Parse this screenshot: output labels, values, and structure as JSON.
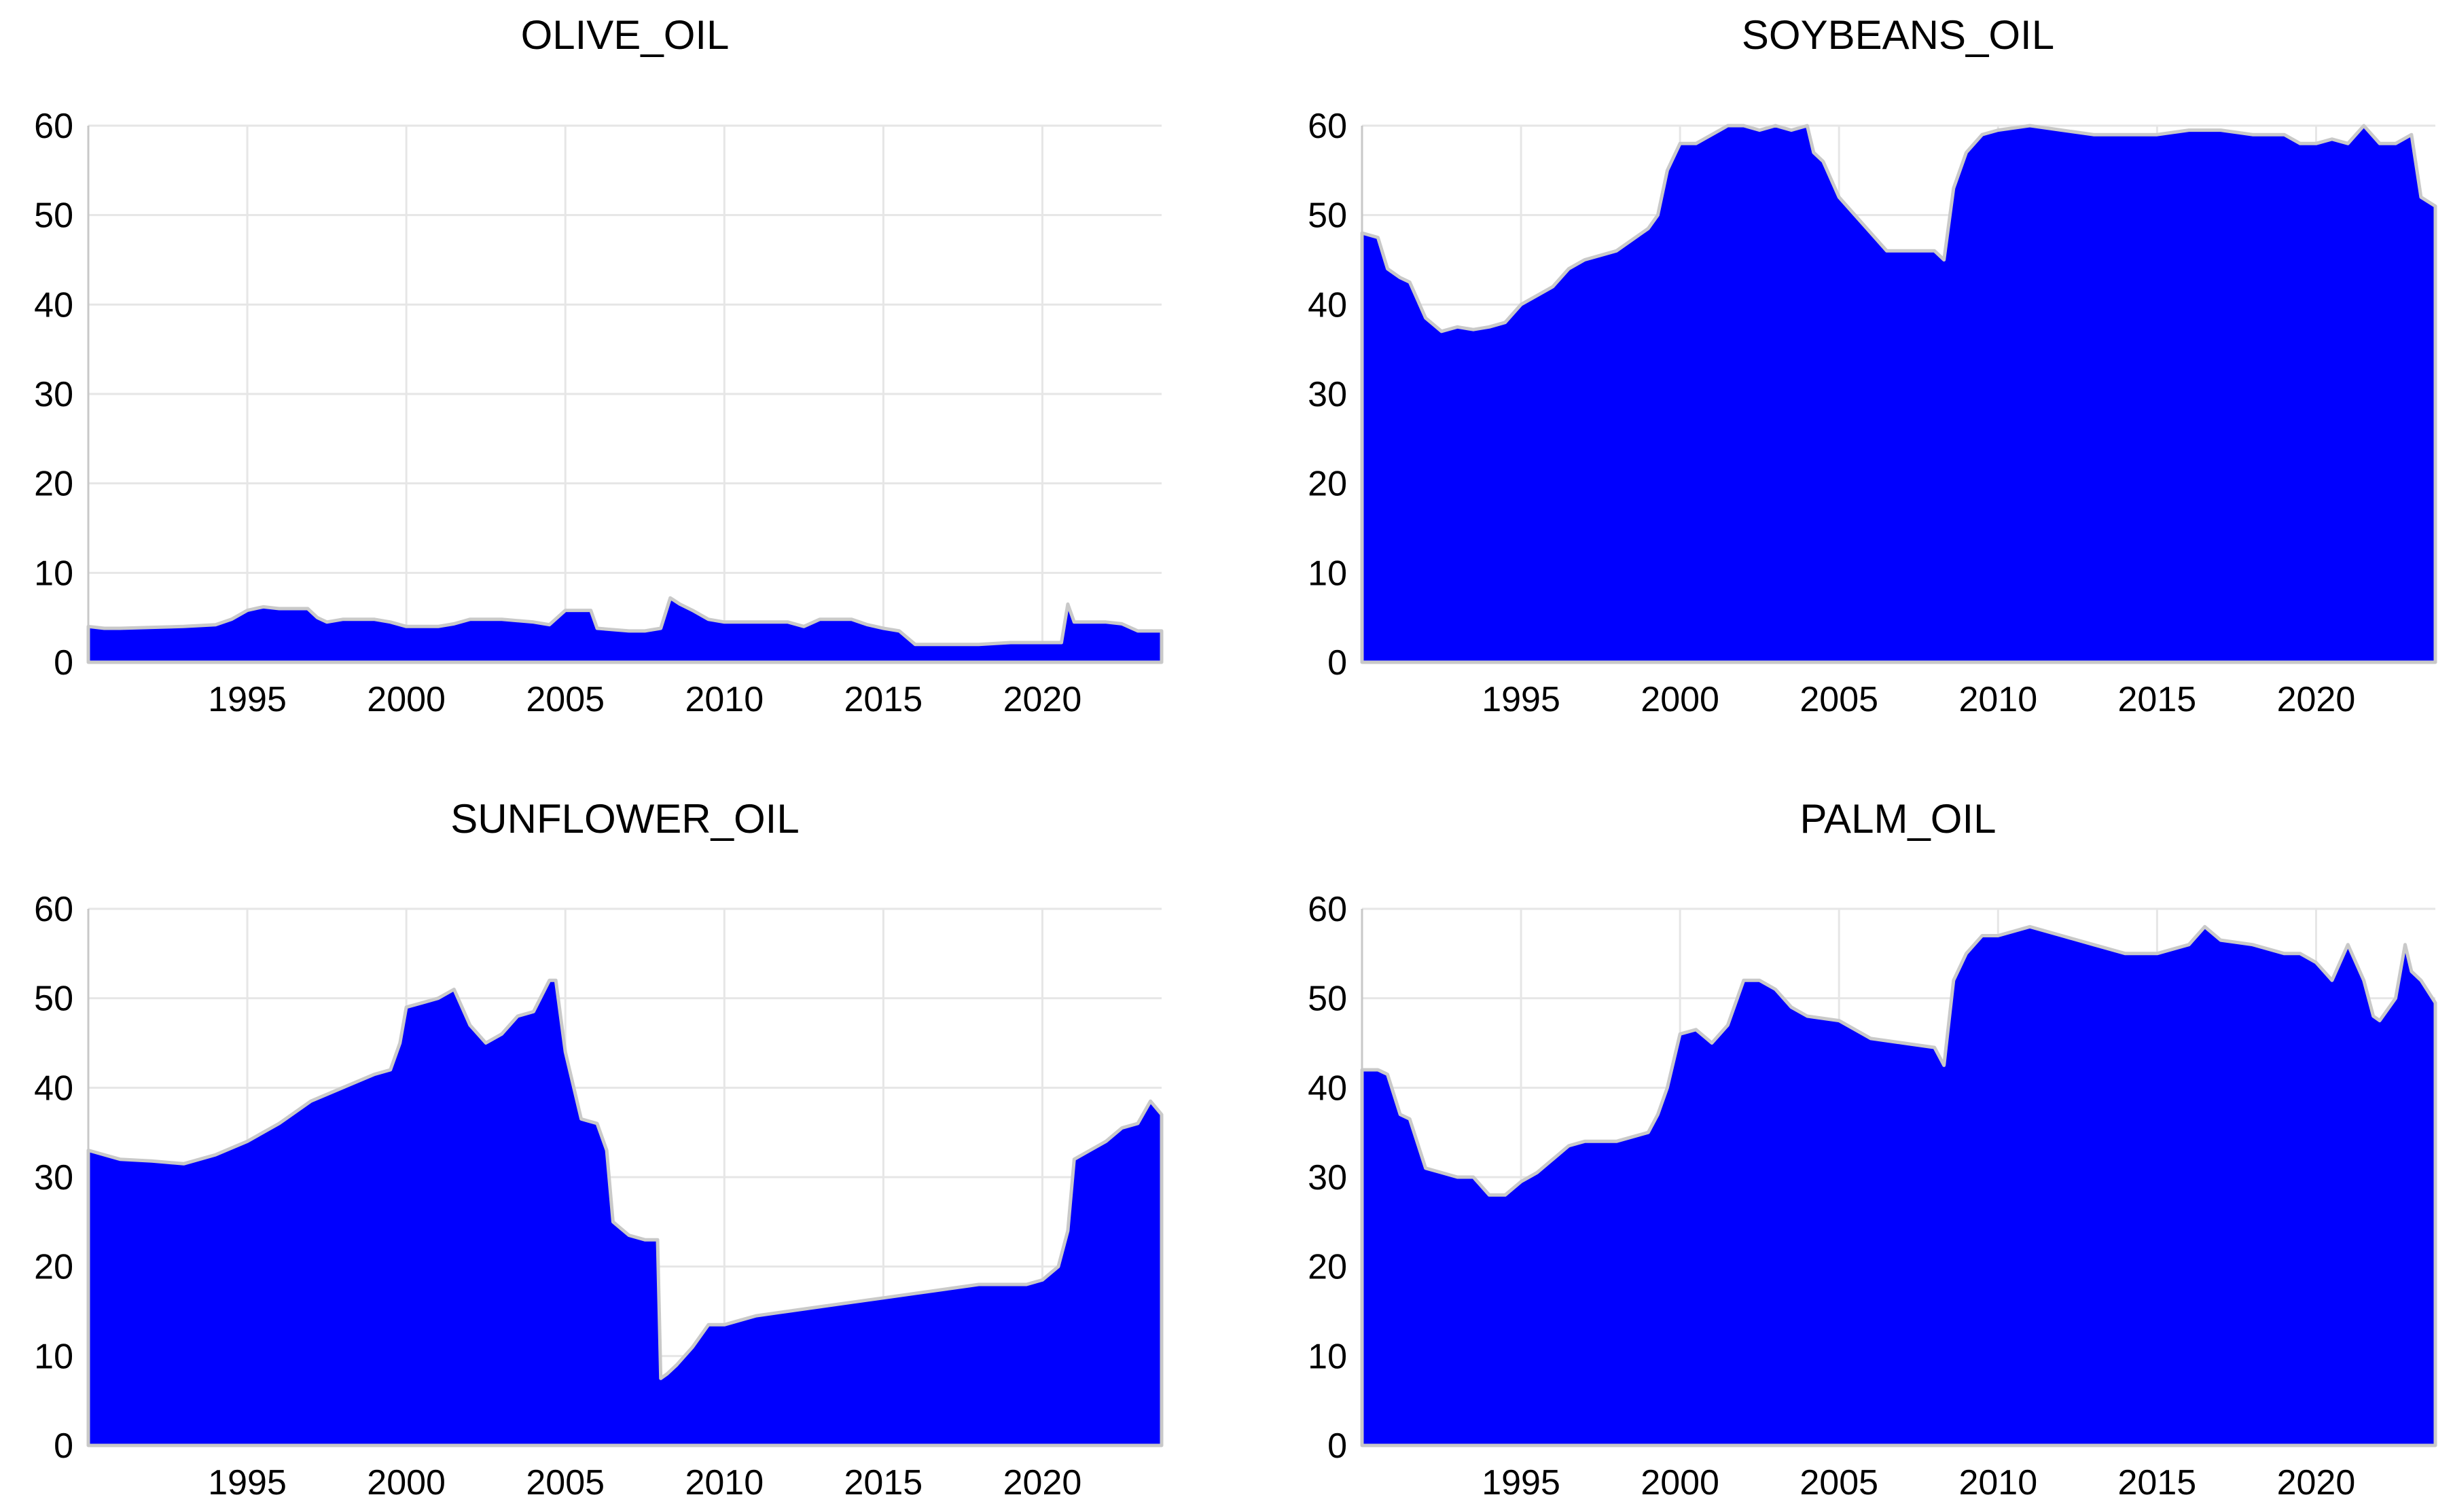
{
  "chart_data": [
    {
      "type": "area",
      "title": "OLIVE_OIL",
      "xlabel": "",
      "ylabel": "",
      "xlim": [
        1990.0,
        2023.75
      ],
      "ylim": [
        0,
        60
      ],
      "x_ticks": [
        1995,
        2000,
        2005,
        2010,
        2015,
        2020
      ],
      "y_ticks": [
        0,
        10,
        20,
        30,
        40,
        50,
        60
      ],
      "grid": true,
      "fill_color": "#0000ff",
      "edge_color": "#c9c9c9",
      "x": [
        1990.0,
        1990.5,
        1991.0,
        1992.0,
        1993.0,
        1994.0,
        1994.5,
        1995.0,
        1995.5,
        1996.0,
        1996.5,
        1996.9,
        1997.2,
        1997.5,
        1998.0,
        1999.0,
        1999.5,
        2000.0,
        2001.0,
        2001.5,
        2002.0,
        2003.0,
        2004.0,
        2004.5,
        2005.0,
        2005.5,
        2005.8,
        2006.0,
        2007.0,
        2007.5,
        2008.0,
        2008.3,
        2008.6,
        2009.0,
        2009.5,
        2010.0,
        2011.0,
        2012.0,
        2012.5,
        2013.0,
        2014.0,
        2014.5,
        2015.0,
        2015.5,
        2016.0,
        2017.0,
        2018.0,
        2019.0,
        2020.0,
        2020.6,
        2020.8,
        2021.0,
        2022.0,
        2022.5,
        2023.0,
        2023.75
      ],
      "y": [
        4.0,
        3.8,
        3.8,
        3.9,
        4.0,
        4.2,
        4.8,
        5.8,
        6.2,
        6.0,
        6.0,
        6.0,
        5.0,
        4.5,
        4.8,
        4.8,
        4.5,
        4.0,
        4.0,
        4.3,
        4.8,
        4.8,
        4.5,
        4.2,
        5.8,
        5.8,
        5.8,
        3.8,
        3.5,
        3.5,
        3.8,
        7.2,
        6.5,
        5.8,
        4.8,
        4.5,
        4.5,
        4.5,
        4.0,
        4.8,
        4.8,
        4.2,
        3.8,
        3.5,
        2.0,
        2.0,
        2.0,
        2.2,
        2.2,
        2.2,
        6.5,
        4.5,
        4.5,
        4.3,
        3.5,
        3.5
      ]
    },
    {
      "type": "area",
      "title": "SOYBEANS_OIL",
      "xlabel": "",
      "ylabel": "",
      "xlim": [
        1990.0,
        2023.75
      ],
      "ylim": [
        0,
        60
      ],
      "x_ticks": [
        1995,
        2000,
        2005,
        2010,
        2015,
        2020
      ],
      "y_ticks": [
        0,
        10,
        20,
        30,
        40,
        50,
        60
      ],
      "grid": true,
      "fill_color": "#0000ff",
      "edge_color": "#c9c9c9",
      "x": [
        1990.0,
        1990.5,
        1990.8,
        1991.2,
        1991.5,
        1992.0,
        1992.5,
        1993.0,
        1993.5,
        1994.0,
        1994.5,
        1995.0,
        1995.5,
        1996.0,
        1996.5,
        1997.0,
        1998.0,
        1999.0,
        1999.3,
        1999.6,
        2000.0,
        2000.5,
        2001.0,
        2001.5,
        2002.0,
        2002.5,
        2003.0,
        2003.5,
        2004.0,
        2004.2,
        2004.5,
        2005.0,
        2005.5,
        2006.0,
        2006.5,
        2007.0,
        2007.5,
        2008.0,
        2008.3,
        2008.6,
        2009.0,
        2009.5,
        2010.0,
        2011.0,
        2012.0,
        2013.0,
        2014.0,
        2015.0,
        2016.0,
        2017.0,
        2018.0,
        2019.0,
        2019.5,
        2020.0,
        2020.5,
        2021.0,
        2021.5,
        2022.0,
        2022.5,
        2023.0,
        2023.3,
        2023.75
      ],
      "y": [
        48.0,
        47.5,
        44.0,
        43.0,
        42.5,
        38.5,
        37.0,
        37.5,
        37.2,
        37.5,
        38.0,
        40.0,
        41.0,
        42.0,
        44.0,
        45.0,
        46.0,
        48.5,
        50.0,
        55.0,
        58.0,
        58.0,
        59.0,
        60.0,
        60.0,
        59.5,
        60.0,
        59.5,
        60.0,
        57.0,
        56.0,
        52.0,
        50.0,
        48.0,
        46.0,
        46.0,
        46.0,
        46.0,
        45.0,
        53.0,
        57.0,
        59.0,
        59.5,
        60.0,
        59.5,
        59.0,
        59.0,
        59.0,
        59.5,
        59.5,
        59.0,
        59.0,
        58.0,
        58.0,
        58.5,
        58.0,
        60.0,
        58.0,
        58.0,
        59.0,
        52.0,
        51.0
      ]
    },
    {
      "type": "area",
      "title": "SUNFLOWER_OIL",
      "xlabel": "",
      "ylabel": "",
      "xlim": [
        1990.0,
        2023.75
      ],
      "ylim": [
        0,
        60
      ],
      "x_ticks": [
        1995,
        2000,
        2005,
        2010,
        2015,
        2020
      ],
      "y_ticks": [
        0,
        10,
        20,
        30,
        40,
        50,
        60
      ],
      "grid": true,
      "fill_color": "#0000ff",
      "edge_color": "#c9c9c9",
      "x": [
        1990.0,
        1990.5,
        1991.0,
        1992.0,
        1993.0,
        1993.5,
        1994.0,
        1995.0,
        1996.0,
        1997.0,
        1998.0,
        1999.0,
        1999.5,
        1999.8,
        2000.0,
        2000.5,
        2001.0,
        2001.5,
        2002.0,
        2002.5,
        2003.0,
        2003.5,
        2004.0,
        2004.5,
        2004.7,
        2005.0,
        2005.5,
        2006.0,
        2006.3,
        2006.5,
        2007.0,
        2007.5,
        2007.9,
        2008.0,
        2008.2,
        2008.5,
        2009.0,
        2009.5,
        2010.0,
        2010.5,
        2011.0,
        2012.0,
        2013.0,
        2014.0,
        2015.0,
        2016.0,
        2017.0,
        2018.0,
        2019.0,
        2019.5,
        2020.0,
        2020.5,
        2020.8,
        2021.0,
        2021.5,
        2022.0,
        2022.5,
        2023.0,
        2023.4,
        2023.75
      ],
      "y": [
        33.0,
        32.5,
        32.0,
        31.8,
        31.5,
        32.0,
        32.5,
        34.0,
        36.0,
        38.5,
        40.0,
        41.5,
        42.0,
        45.0,
        49.0,
        49.5,
        50.0,
        51.0,
        47.0,
        45.0,
        46.0,
        48.0,
        48.5,
        52.0,
        52.0,
        44.0,
        36.5,
        36.0,
        33.0,
        25.0,
        23.5,
        23.0,
        23.0,
        7.5,
        8.0,
        9.0,
        11.0,
        13.5,
        13.5,
        14.0,
        14.5,
        15.0,
        15.5,
        16.0,
        16.5,
        17.0,
        17.5,
        18.0,
        18.0,
        18.0,
        18.5,
        20.0,
        24.0,
        32.0,
        33.0,
        34.0,
        35.5,
        36.0,
        38.5,
        37.0
      ]
    },
    {
      "type": "area",
      "title": "PALM_OIL",
      "xlabel": "",
      "ylabel": "",
      "xlim": [
        1990.0,
        2023.75
      ],
      "ylim": [
        0,
        60
      ],
      "x_ticks": [
        1995,
        2000,
        2005,
        2010,
        2015,
        2020
      ],
      "y_ticks": [
        0,
        10,
        20,
        30,
        40,
        50,
        60
      ],
      "grid": true,
      "fill_color": "#0000ff",
      "edge_color": "#c9c9c9",
      "x": [
        1990.0,
        1990.5,
        1990.8,
        1991.2,
        1991.5,
        1992.0,
        1992.5,
        1993.0,
        1993.5,
        1994.0,
        1994.5,
        1995.0,
        1995.5,
        1996.0,
        1996.5,
        1997.0,
        1998.0,
        1999.0,
        1999.3,
        1999.6,
        2000.0,
        2000.5,
        2001.0,
        2001.5,
        2002.0,
        2002.5,
        2003.0,
        2003.5,
        2004.0,
        2005.0,
        2006.0,
        2007.0,
        2008.0,
        2008.3,
        2008.6,
        2009.0,
        2009.5,
        2010.0,
        2011.0,
        2012.0,
        2013.0,
        2014.0,
        2015.0,
        2016.0,
        2016.5,
        2017.0,
        2018.0,
        2019.0,
        2019.5,
        2020.0,
        2020.5,
        2021.0,
        2021.5,
        2021.8,
        2022.0,
        2022.5,
        2022.8,
        2023.0,
        2023.3,
        2023.75
      ],
      "y": [
        42.0,
        42.0,
        41.5,
        37.0,
        36.5,
        31.0,
        30.5,
        30.0,
        30.0,
        28.0,
        28.0,
        29.5,
        30.5,
        32.0,
        33.5,
        34.0,
        34.0,
        35.0,
        37.0,
        40.0,
        46.0,
        46.5,
        45.0,
        47.0,
        52.0,
        52.0,
        51.0,
        49.0,
        48.0,
        47.5,
        45.5,
        45.0,
        44.5,
        42.5,
        52.0,
        55.0,
        57.0,
        57.0,
        58.0,
        57.0,
        56.0,
        55.0,
        55.0,
        56.0,
        58.0,
        56.5,
        56.0,
        55.0,
        55.0,
        54.0,
        52.0,
        56.0,
        52.0,
        48.0,
        47.5,
        50.0,
        56.0,
        53.0,
        52.0,
        49.5
      ]
    }
  ]
}
